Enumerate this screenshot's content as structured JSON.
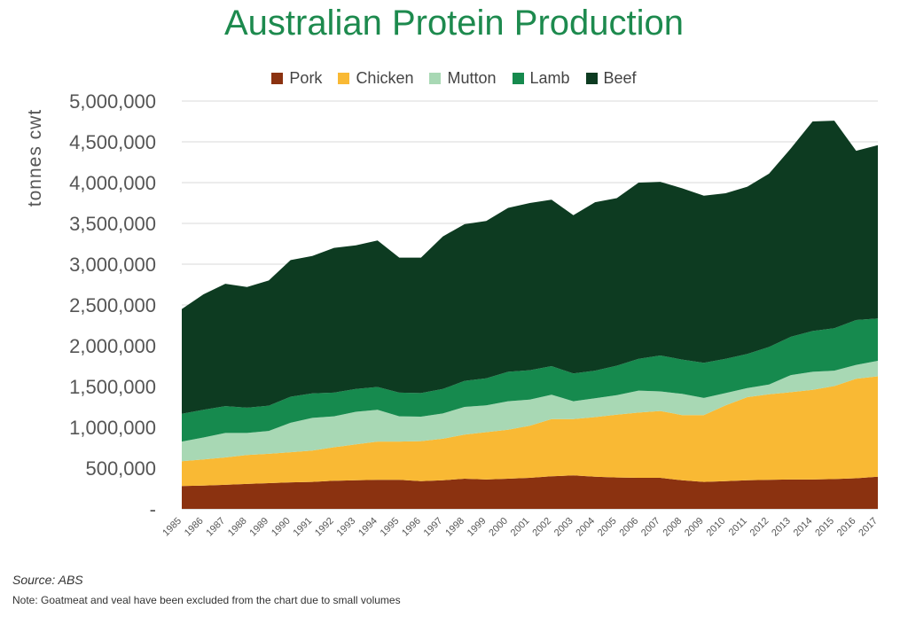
{
  "chart_data": {
    "type": "area",
    "stacked": true,
    "title": "Australian Protein Production",
    "ylabel": "tonnes cwt",
    "ylim": [
      0,
      5000000
    ],
    "yticks": [
      {
        "value": 0,
        "label": "-"
      },
      {
        "value": 500000,
        "label": "500,000"
      },
      {
        "value": 1000000,
        "label": "1,000,000"
      },
      {
        "value": 1500000,
        "label": "1,500,000"
      },
      {
        "value": 2000000,
        "label": "2,000,000"
      },
      {
        "value": 2500000,
        "label": "2,500,000"
      },
      {
        "value": 3000000,
        "label": "3,000,000"
      },
      {
        "value": 3500000,
        "label": "3,500,000"
      },
      {
        "value": 4000000,
        "label": "4,000,000"
      },
      {
        "value": 4500000,
        "label": "4,500,000"
      },
      {
        "value": 5000000,
        "label": "5,000,000"
      }
    ],
    "grid": true,
    "legend_position": "top",
    "categories": [
      "1985",
      "1986",
      "1987",
      "1988",
      "1989",
      "1990",
      "1991",
      "1992",
      "1993",
      "1994",
      "1995",
      "1996",
      "1997",
      "1998",
      "1999",
      "2000",
      "2001",
      "2002",
      "2003",
      "2004",
      "2005",
      "2006",
      "2007",
      "2008",
      "2009",
      "2010",
      "2011",
      "2012",
      "2013",
      "2014",
      "2015",
      "2016",
      "2017"
    ],
    "series": [
      {
        "name": "Pork",
        "color": "#8b3210",
        "values": [
          280000,
          285000,
          295000,
          305000,
          315000,
          325000,
          330000,
          345000,
          350000,
          355000,
          355000,
          340000,
          350000,
          370000,
          360000,
          370000,
          380000,
          400000,
          410000,
          395000,
          385000,
          380000,
          380000,
          350000,
          330000,
          340000,
          350000,
          355000,
          360000,
          360000,
          365000,
          375000,
          395000
        ]
      },
      {
        "name": "Chicken",
        "color": "#f9b934",
        "values": [
          305000,
          320000,
          335000,
          355000,
          360000,
          370000,
          385000,
          410000,
          440000,
          470000,
          470000,
          490000,
          510000,
          540000,
          580000,
          600000,
          640000,
          700000,
          690000,
          730000,
          770000,
          800000,
          820000,
          800000,
          820000,
          930000,
          1020000,
          1050000,
          1070000,
          1100000,
          1140000,
          1220000,
          1230000
        ]
      },
      {
        "name": "Mutton",
        "color": "#a8d8b4",
        "values": [
          240000,
          270000,
          300000,
          270000,
          280000,
          360000,
          400000,
          380000,
          400000,
          390000,
          310000,
          300000,
          310000,
          340000,
          330000,
          350000,
          320000,
          300000,
          220000,
          230000,
          240000,
          270000,
          240000,
          260000,
          210000,
          150000,
          110000,
          120000,
          210000,
          220000,
          190000,
          170000,
          190000
        ]
      },
      {
        "name": "Lamb",
        "color": "#168a4e",
        "values": [
          340000,
          340000,
          330000,
          310000,
          310000,
          320000,
          300000,
          290000,
          280000,
          280000,
          290000,
          290000,
          300000,
          320000,
          330000,
          360000,
          360000,
          350000,
          340000,
          340000,
          360000,
          390000,
          440000,
          420000,
          430000,
          420000,
          420000,
          460000,
          470000,
          500000,
          520000,
          550000,
          520000
        ]
      },
      {
        "name": "Beef",
        "color": "#0d3b21",
        "values": [
          1285000,
          1415000,
          1500000,
          1480000,
          1535000,
          1675000,
          1685000,
          1775000,
          1760000,
          1795000,
          1655000,
          1660000,
          1870000,
          1920000,
          1930000,
          2010000,
          2050000,
          2040000,
          1940000,
          2065000,
          2055000,
          2160000,
          2130000,
          2100000,
          2050000,
          2030000,
          2050000,
          2125000,
          2310000,
          2570000,
          2545000,
          2075000,
          2125000
        ]
      }
    ]
  },
  "footer": {
    "source": "Source: ABS",
    "note": "Note: Goatmeat and veal have been excluded from the chart due to small volumes"
  }
}
